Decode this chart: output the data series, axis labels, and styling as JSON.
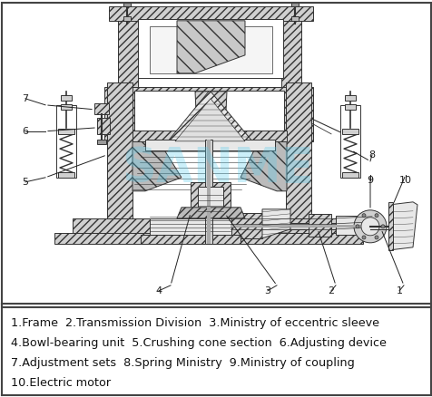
{
  "caption_lines": [
    "1.Frame  2.Transmission Division  3.Ministry of eccentric sleeve",
    "4.Bowl-bearing unit  5.Crushing cone section  6.Adjusting device",
    "7.Adjustment sets  8.Spring Ministry  9.Ministry of coupling",
    "10.Electric motor"
  ],
  "border_color": "#555555",
  "text_color": "#111111",
  "caption_fontsize": 9.2,
  "watermark_text": "SANME",
  "watermark_color": "#55ccee",
  "watermark_alpha": 0.3,
  "line_color": "#333333",
  "hatch_color": "#555555",
  "fill_light": "#e8e8e8",
  "fill_mid": "#d0d0d0",
  "fill_dark": "#bbbbbb",
  "fig_width": 4.77,
  "fig_height": 4.38,
  "dpi": 100
}
